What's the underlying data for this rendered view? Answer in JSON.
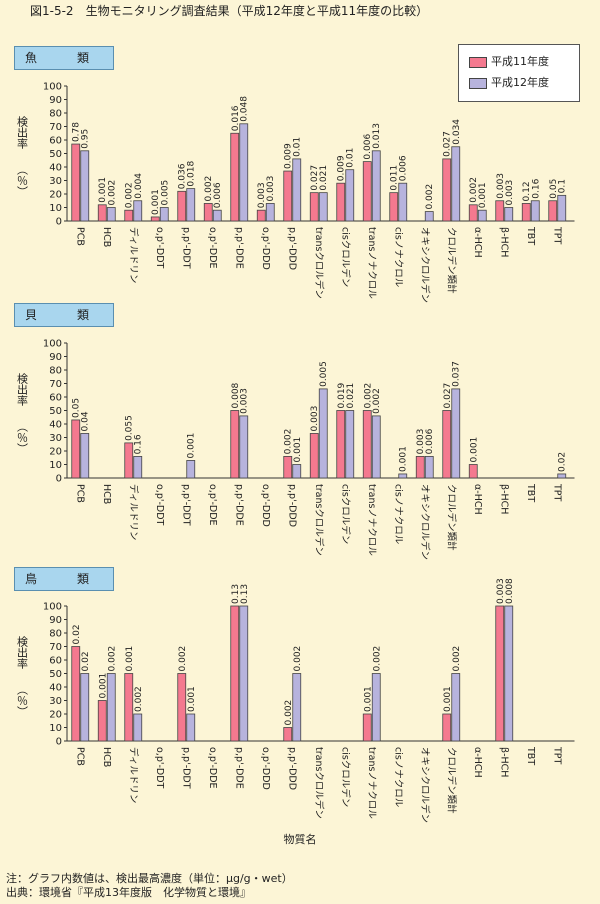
{
  "figure_title": "図1-5-2　生物モニタリング調査結果（平成12年度と平成11年度の比較）",
  "panels": [
    {
      "label": "魚　類"
    },
    {
      "label": "貝　類"
    },
    {
      "label": "鳥　類"
    }
  ],
  "legend": [
    {
      "name": "平成11年度",
      "color": "#f4798f"
    },
    {
      "name": "平成12年度",
      "color": "#b7b3dd"
    }
  ],
  "ylabel_main": "検出率",
  "ylabel_unit": "（％）",
  "xlabel": "物質名",
  "note": "注：グラフ内数値は、検出最高濃度（単位：μg/g・wet）",
  "source": "出典：環境省『平成13年度版　化学物質と環境』",
  "chart_data": [
    {
      "type": "bar",
      "title": "魚　類",
      "categories": [
        "PCB",
        "HCB",
        "ディルドリン",
        "o,p'-DDT",
        "p,p'-DDT",
        "o,p'-DDE",
        "p,p'-DDE",
        "o,p'-DDD",
        "p,p'-DDD",
        "transクロルデン",
        "cisクロルデン",
        "transノナクロル",
        "cisノナクロル",
        "オキシクロルデン",
        "クロルデン類計",
        "α-HCH",
        "β-HCH",
        "TBT",
        "TPT"
      ],
      "series": [
        {
          "name": "平成11年度",
          "values": [
            57,
            12,
            8,
            3,
            22,
            13,
            65,
            8,
            37,
            21,
            28,
            44,
            21,
            0,
            46,
            12,
            15,
            13,
            15
          ]
        },
        {
          "name": "平成12年度",
          "values": [
            52,
            10,
            15,
            10,
            24,
            8,
            72,
            13,
            46,
            21,
            38,
            52,
            28,
            7,
            55,
            8,
            10,
            15,
            19
          ]
        }
      ],
      "data_labels": [
        [
          "0.78",
          "0.001",
          "0.002",
          "0.001",
          "0.036",
          "0.002",
          "0.016",
          "0.003",
          "0.009",
          "0.027",
          "0.009",
          "0.006",
          "0.011",
          "",
          "0.027",
          "0.002",
          "0.003",
          "0.12",
          "0.05"
        ],
        [
          "0.95",
          "0.002",
          "0.004",
          "0.005",
          "0.018",
          "0.006",
          "0.048",
          "0.003",
          "0.01",
          "0.021",
          "0.01",
          "0.013",
          "0.006",
          "0.002",
          "0.034",
          "0.001",
          "0.003",
          "0.16",
          "0.1"
        ]
      ],
      "ylim": [
        0,
        100
      ],
      "yticks": [
        0,
        10,
        20,
        30,
        40,
        50,
        60,
        70,
        80,
        90,
        100
      ]
    },
    {
      "type": "bar",
      "title": "貝　類",
      "categories": [
        "PCB",
        "HCB",
        "ディルドリン",
        "o,p'-DDT",
        "p,p'-DDT",
        "o,p'-DDE",
        "p,p'-DDE",
        "o,p'-DDD",
        "p,p'-DDD",
        "transクロルデン",
        "cisクロルデン",
        "transノナクロル",
        "cisノナクロル",
        "オキシクロルデン",
        "クロルデン類計",
        "α-HCH",
        "β-HCH",
        "TBT",
        "TPT"
      ],
      "series": [
        {
          "name": "平成11年度",
          "values": [
            43,
            0,
            26,
            0,
            0,
            0,
            50,
            0,
            16,
            33,
            50,
            50,
            0,
            16,
            50,
            10,
            0,
            0,
            0
          ]
        },
        {
          "name": "平成12年度",
          "values": [
            33,
            0,
            16,
            0,
            13,
            0,
            46,
            0,
            10,
            66,
            50,
            46,
            3,
            16,
            66,
            0,
            0,
            0,
            3
          ]
        }
      ],
      "data_labels": [
        [
          "0.05",
          "",
          "0.055",
          "",
          "",
          "",
          "0.008",
          "",
          "0.002",
          "0.003",
          "0.019",
          "0.002",
          "",
          "0.003",
          "0.027",
          "0.001",
          "",
          "",
          ""
        ],
        [
          "0.04",
          "",
          "0.16",
          "",
          "0.001",
          "",
          "0.003",
          "",
          "0.001",
          "0.005",
          "0.021",
          "0.002",
          "0.001",
          "0.006",
          "0.037",
          "",
          "",
          "",
          "0.02"
        ]
      ],
      "ylim": [
        0,
        100
      ],
      "yticks": [
        0,
        10,
        20,
        30,
        40,
        50,
        60,
        70,
        80,
        90,
        100
      ]
    },
    {
      "type": "bar",
      "title": "鳥　類",
      "categories": [
        "PCB",
        "HCB",
        "ディルドリン",
        "o,p'-DDT",
        "p,p'-DDT",
        "o,p'-DDE",
        "p,p'-DDE",
        "o,p'-DDD",
        "p,p'-DDD",
        "transクロルデン",
        "cisクロルデン",
        "transノナクロル",
        "cisノナクロル",
        "オキシクロルデン",
        "クロルデン類計",
        "α-HCH",
        "β-HCH",
        "TBT",
        "TPT"
      ],
      "series": [
        {
          "name": "平成11年度",
          "values": [
            70,
            30,
            50,
            0,
            50,
            0,
            100,
            0,
            10,
            0,
            0,
            20,
            0,
            0,
            20,
            0,
            100,
            0,
            0
          ]
        },
        {
          "name": "平成12年度",
          "values": [
            50,
            50,
            20,
            0,
            20,
            0,
            100,
            0,
            50,
            0,
            0,
            50,
            0,
            0,
            50,
            0,
            100,
            0,
            0
          ]
        }
      ],
      "data_labels": [
        [
          "0.02",
          "0.001",
          "0.001",
          "",
          "0.002",
          "",
          "0.13",
          "",
          "0.002",
          "",
          "",
          "0.001",
          "",
          "",
          "0.001",
          "",
          "0.003",
          "",
          ""
        ],
        [
          "0.02",
          "0.002",
          "0.002",
          "",
          "0.001",
          "",
          "0.13",
          "",
          "0.002",
          "",
          "",
          "0.002",
          "",
          "",
          "0.002",
          "",
          "0.008",
          "",
          ""
        ]
      ],
      "ylim": [
        0,
        100
      ],
      "yticks": [
        0,
        10,
        20,
        30,
        40,
        50,
        60,
        70,
        80,
        90,
        100
      ]
    }
  ]
}
